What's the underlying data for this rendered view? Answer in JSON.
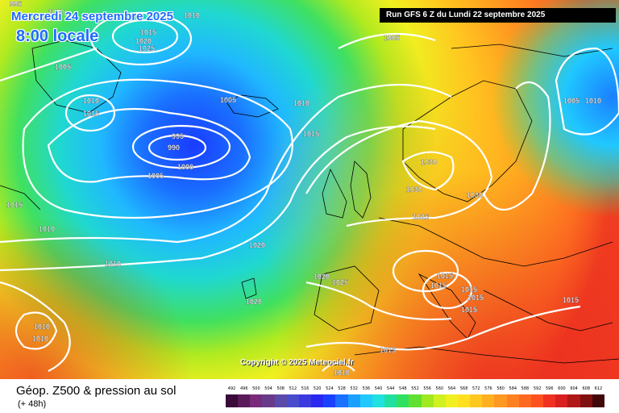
{
  "header": {
    "date_line": "Mercredi 24 septembre 2025",
    "time_line": "8:00 locale",
    "run_info": "Run GFS 6 Z du Lundi 22 septembre 2025"
  },
  "map": {
    "copyright": "Copyright © 2025 Meteociel.fr",
    "isobar_labels": [
      {
        "id": "l-995-a",
        "text": "995"
      },
      {
        "id": "l-1000-a",
        "text": "1000"
      },
      {
        "id": "l-1010-a",
        "text": "1010"
      },
      {
        "id": "l-1015-a",
        "text": "1015"
      },
      {
        "id": "l-1020-a",
        "text": "1020"
      },
      {
        "id": "l-1025-a",
        "text": "1025"
      },
      {
        "id": "l-1005-a",
        "text": "1005"
      },
      {
        "id": "l-1005-b",
        "text": "1005"
      },
      {
        "id": "l-1010-b",
        "text": "1010"
      },
      {
        "id": "l-1015-b",
        "text": "1015"
      },
      {
        "id": "l-995-b",
        "text": "995"
      },
      {
        "id": "l-990",
        "text": "990"
      },
      {
        "id": "l-1000-b",
        "text": "1000"
      },
      {
        "id": "l-1005-c",
        "text": "1005"
      },
      {
        "id": "l-1005-d",
        "text": "1005"
      },
      {
        "id": "l-1010-c",
        "text": "1010"
      },
      {
        "id": "l-1015-c",
        "text": "1015"
      },
      {
        "id": "l-1030-a",
        "text": "1030"
      },
      {
        "id": "l-1030-b",
        "text": "1030"
      },
      {
        "id": "l-1030-c",
        "text": "1030"
      },
      {
        "id": "l-1025-b",
        "text": "1025"
      },
      {
        "id": "l-1015-d",
        "text": "1015"
      },
      {
        "id": "l-1010-d",
        "text": "1010"
      },
      {
        "id": "l-1010-e",
        "text": "1010"
      },
      {
        "id": "l-1020-b",
        "text": "1020"
      },
      {
        "id": "l-1020-c",
        "text": "1020"
      },
      {
        "id": "l-1025-c",
        "text": "1025"
      },
      {
        "id": "l-1020-d",
        "text": "1020"
      },
      {
        "id": "l-1015-e",
        "text": "1015"
      },
      {
        "id": "l-1015-f",
        "text": "1015"
      },
      {
        "id": "l-1015-g",
        "text": "1015"
      },
      {
        "id": "l-1015-h",
        "text": "1015"
      },
      {
        "id": "l-1015-i",
        "text": "1015"
      },
      {
        "id": "l-1015-j",
        "text": "1015"
      },
      {
        "id": "l-1010-f",
        "text": "1010"
      },
      {
        "id": "l-1010-g",
        "text": "1010"
      },
      {
        "id": "l-1005-e",
        "text": "1005"
      },
      {
        "id": "l-1010-h",
        "text": "1010"
      },
      {
        "id": "l-1015-k",
        "text": "1015"
      },
      {
        "id": "l-1010-i",
        "text": "1010"
      }
    ]
  },
  "footer": {
    "title": "Géop. Z500 & pression au sol",
    "subtitle": "(+ 48h)",
    "scale_values": [
      "492",
      "496",
      "500",
      "504",
      "508",
      "512",
      "516",
      "520",
      "524",
      "528",
      "532",
      "536",
      "540",
      "544",
      "548",
      "552",
      "556",
      "560",
      "564",
      "568",
      "572",
      "576",
      "580",
      "584",
      "588",
      "592",
      "596",
      "600",
      "604",
      "608",
      "612"
    ],
    "scale_colors": [
      "#3a0a3a",
      "#5a1a5a",
      "#7a2a7a",
      "#6a3a8a",
      "#5a4aaa",
      "#4a4acd",
      "#3a3ae0",
      "#2828f0",
      "#1a40ff",
      "#1a70ff",
      "#1aa0ff",
      "#20c8ff",
      "#20e0e0",
      "#20e0a0",
      "#30e060",
      "#60e030",
      "#a0e820",
      "#d0f020",
      "#f0f020",
      "#ffe020",
      "#ffc820",
      "#ffb020",
      "#ff9820",
      "#ff8020",
      "#ff6820",
      "#ff5020",
      "#f03020",
      "#d82020",
      "#b01818",
      "#801010",
      "#400808"
    ]
  }
}
